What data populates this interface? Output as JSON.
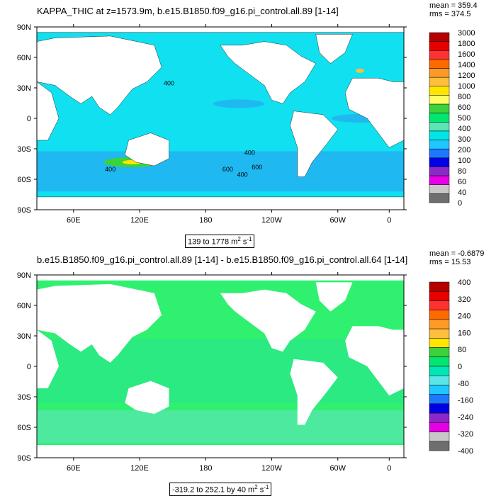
{
  "panels": [
    {
      "title": "KAPPA_THIC at z=1573.9m, b.e15.B1850.f09_g16.pi_control.all.89 [1-14]",
      "mean_label": "mean = 359.4",
      "rms_label": "rms = 374.5",
      "range_text": "139 to 1778 m",
      "range_unit_exp": "2",
      "range_unit_tail": " s",
      "range_unit_exp2": "-1",
      "colorbar_labels": [
        "3000",
        "1800",
        "1600",
        "1400",
        "1200",
        "1000",
        "800",
        "600",
        "500",
        "400",
        "300",
        "200",
        "100",
        "80",
        "60",
        "40",
        "0"
      ],
      "colorbar_colors": [
        "#b40000",
        "#e60000",
        "#ff3232",
        "#ff6a00",
        "#ff9a28",
        "#ffbe3c",
        "#ffe600",
        "#ffff64",
        "#3cd23c",
        "#00e66e",
        "#5ae6b4",
        "#00e6e6",
        "#1ec8ff",
        "#1e78ff",
        "#0000e6",
        "#8c28c8",
        "#e600e6",
        "#c8c8c8",
        "#6e6e6e"
      ],
      "contour_labels": [
        "400",
        "400",
        "400",
        "600",
        "400",
        "600"
      ]
    },
    {
      "title": "b.e15.B1850.f09_g16.pi_control.all.89 [1-14] - b.e15.B1850.f09_g16.pi_control.all.64 [1-14]",
      "mean_label": "mean = -0.6879",
      "rms_label": "rms = 15.53",
      "range_text": "-319.2 to 252.1 by 40 m",
      "range_unit_exp": "2",
      "range_unit_tail": " s",
      "range_unit_exp2": "-1",
      "colorbar_labels": [
        "400",
        "320",
        "240",
        "160",
        "80",
        "0",
        "-80",
        "-160",
        "-240",
        "-320",
        "-400"
      ],
      "colorbar_colors": [
        "#b40000",
        "#e60000",
        "#ff3232",
        "#ff6a00",
        "#ff9a28",
        "#ffbe3c",
        "#ffe600",
        "#3cd23c",
        "#00e66e",
        "#00e6b4",
        "#5ae6e6",
        "#1ec8ff",
        "#1e78ff",
        "#0000e6",
        "#8c28c8",
        "#e600e6",
        "#c8c8c8",
        "#6e6e6e"
      ]
    }
  ],
  "axes": {
    "lat_ticks": [
      "90N",
      "60N",
      "30N",
      "0",
      "30S",
      "60S",
      "90S"
    ],
    "lon_ticks": [
      "60E",
      "120E",
      "180",
      "120W",
      "60W",
      "0"
    ]
  },
  "colors": {
    "ocean_top": "#10e0f0",
    "ocean_top_deep": "#20b8f0",
    "ocean_bottom": "#30f070",
    "land": "#ffffff"
  }
}
